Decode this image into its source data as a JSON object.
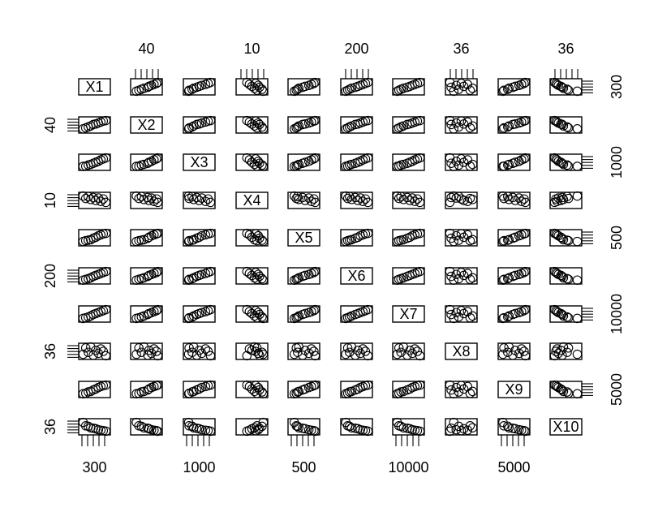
{
  "chart_data": {
    "type": "scatter",
    "variables": [
      "X1",
      "X2",
      "X3",
      "X4",
      "X5",
      "X6",
      "X7",
      "X8",
      "X9",
      "X10"
    ],
    "axis_tick_labels": {
      "top": [
        {
          "var": 1,
          "label": "40"
        },
        {
          "var": 3,
          "label": "10"
        },
        {
          "var": 5,
          "label": "200"
        },
        {
          "var": 7,
          "label": "36"
        },
        {
          "var": 9,
          "label": "36"
        }
      ],
      "bottom": [
        {
          "var": 0,
          "label": "300"
        },
        {
          "var": 2,
          "label": "1000"
        },
        {
          "var": 4,
          "label": "500"
        },
        {
          "var": 6,
          "label": "10000"
        },
        {
          "var": 8,
          "label": "5000"
        }
      ],
      "left": [
        {
          "var": 1,
          "label": "40"
        },
        {
          "var": 3,
          "label": "10"
        },
        {
          "var": 5,
          "label": "200"
        },
        {
          "var": 7,
          "label": "36"
        },
        {
          "var": 9,
          "label": "36"
        }
      ],
      "right": [
        {
          "var": 0,
          "label": "300"
        },
        {
          "var": 2,
          "label": "1000"
        },
        {
          "var": 4,
          "label": "500"
        },
        {
          "var": 6,
          "label": "10000"
        },
        {
          "var": 8,
          "label": "5000"
        }
      ]
    },
    "n_observations": 10,
    "observations": [
      [
        0.05,
        0.1,
        0.08,
        0.95,
        0.12,
        0.07,
        0.05,
        0.2,
        0.06,
        0.95
      ],
      [
        0.15,
        0.2,
        0.1,
        0.7,
        0.2,
        0.15,
        0.12,
        0.85,
        0.1,
        0.6
      ],
      [
        0.25,
        0.3,
        0.22,
        0.9,
        0.25,
        0.22,
        0.2,
        0.4,
        0.25,
        0.55
      ],
      [
        0.35,
        0.4,
        0.28,
        0.6,
        0.3,
        0.3,
        0.3,
        0.95,
        0.3,
        0.4
      ],
      [
        0.45,
        0.55,
        0.4,
        0.8,
        0.45,
        0.45,
        0.45,
        0.1,
        0.45,
        0.35
      ],
      [
        0.55,
        0.6,
        0.5,
        0.5,
        0.55,
        0.55,
        0.55,
        0.6,
        0.55,
        0.3
      ],
      [
        0.65,
        0.7,
        0.6,
        0.75,
        0.7,
        0.65,
        0.65,
        0.3,
        0.7,
        0.2
      ],
      [
        0.75,
        0.8,
        0.75,
        0.4,
        0.8,
        0.75,
        0.75,
        0.75,
        0.8,
        0.15
      ],
      [
        0.85,
        0.9,
        0.85,
        0.65,
        0.9,
        0.85,
        0.85,
        0.5,
        0.9,
        0.1
      ],
      [
        0.95,
        0.95,
        0.95,
        0.3,
        0.95,
        0.95,
        0.95,
        0.05,
        0.95,
        0.05
      ]
    ],
    "ticks_per_panel": 5,
    "colors": {
      "ink": "#000000",
      "background": "#ffffff"
    }
  }
}
